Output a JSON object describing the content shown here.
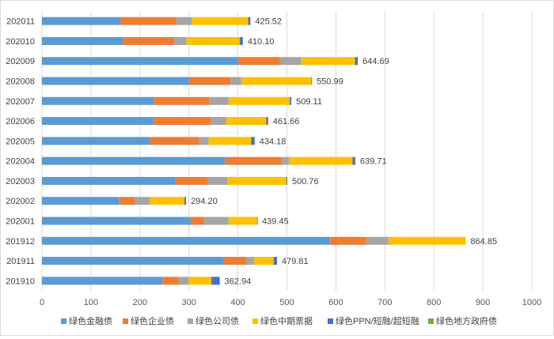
{
  "chart_data": {
    "type": "bar",
    "orientation": "horizontal",
    "stacked": true,
    "categories": [
      "202011",
      "202010",
      "202009",
      "202008",
      "202007",
      "202006",
      "202005",
      "202004",
      "202003",
      "202002",
      "202001",
      "201912",
      "201911",
      "201910"
    ],
    "series": [
      {
        "name": "绿色金融债",
        "color": "#5b9bd5",
        "values": [
          160,
          165,
          400,
          300,
          228,
          228,
          220,
          373,
          272,
          157,
          303,
          587,
          370,
          246
        ]
      },
      {
        "name": "绿色企业债",
        "color": "#ed7d31",
        "values": [
          114,
          105,
          86,
          85,
          113,
          117,
          100,
          116,
          67,
          32,
          28,
          75,
          46,
          33
        ]
      },
      {
        "name": "绿色公司债",
        "color": "#a5a5a5",
        "values": [
          32,
          25,
          43,
          22,
          40,
          31,
          20,
          15,
          39,
          31,
          50,
          45,
          17,
          20
        ]
      },
      {
        "name": "绿色中期票据",
        "color": "#ffc000",
        "values": [
          115,
          109,
          110,
          143,
          125,
          82,
          87,
          130,
          121,
          71,
          58,
          158,
          40,
          47
        ]
      },
      {
        "name": "绿色PPN/短融/超短融",
        "color": "#4472c4",
        "values": [
          4.52,
          6.1,
          5.69,
          0.99,
          3.11,
          3.66,
          7.18,
          5.71,
          1.76,
          3.2,
          0.45,
          0,
          6.81,
          16.94
        ]
      },
      {
        "name": "绿色地方政府债",
        "color": "#70ad47",
        "values": [
          0,
          0,
          0,
          0,
          0,
          0,
          0,
          0,
          0,
          0,
          0,
          0,
          0,
          0
        ]
      }
    ],
    "totals": [
      "425.52",
      "410.10",
      "644.69",
      "550.99",
      "509.11",
      "461.66",
      "434.18",
      "639.71",
      "500.76",
      "294.20",
      "439.45",
      "864.85",
      "479.81",
      "362.94"
    ],
    "xlim": [
      0,
      1000
    ],
    "xticks": [
      0,
      100,
      200,
      300,
      400,
      500,
      600,
      700,
      800,
      900,
      1000
    ],
    "grid": "vertical",
    "legend_position": "bottom"
  }
}
